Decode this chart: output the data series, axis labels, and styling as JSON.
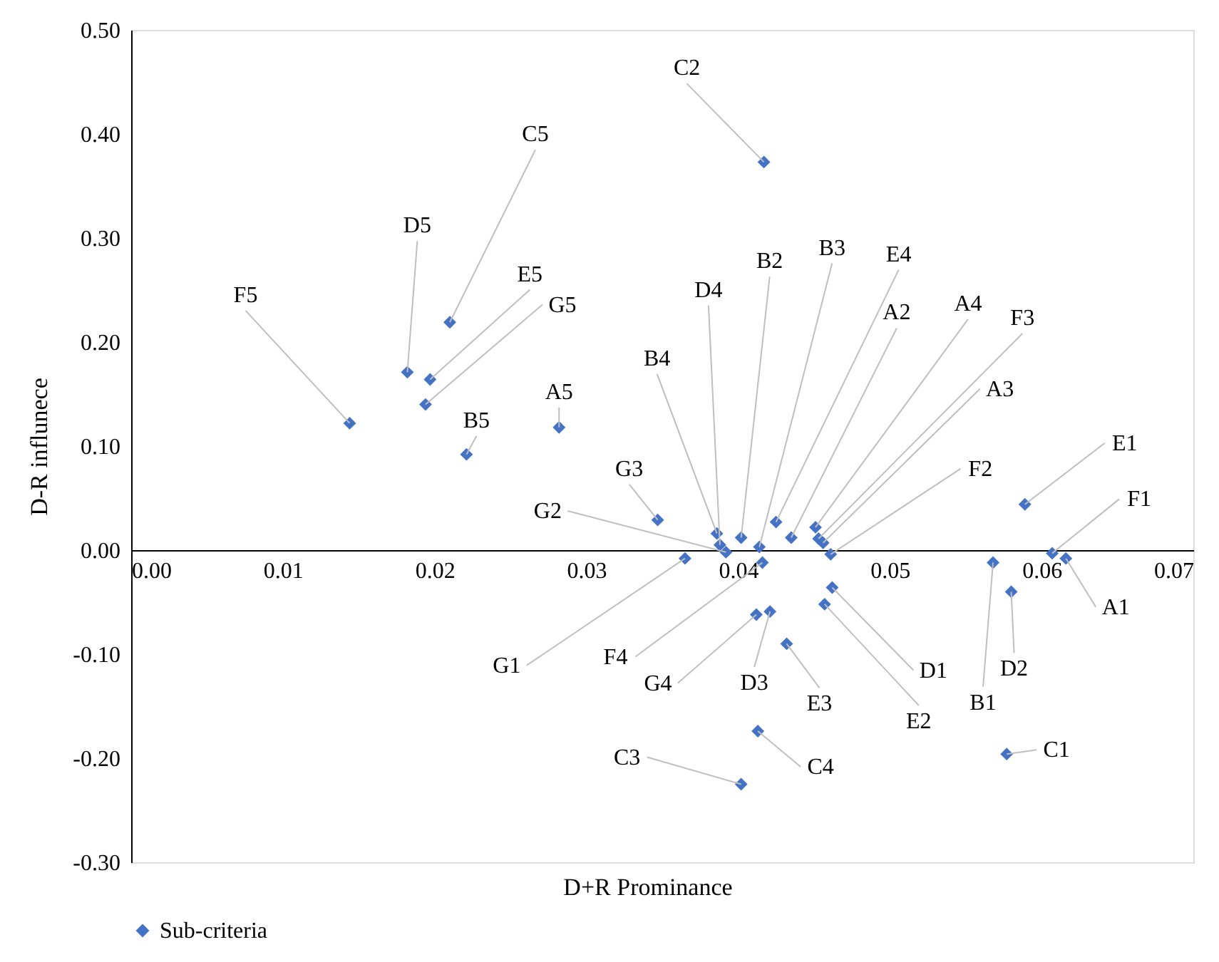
{
  "chart_data": {
    "type": "scatter",
    "xlabel": "D+R Prominance",
    "ylabel": "D-R influnece",
    "x": [
      0.0417,
      0.021,
      0.0182,
      0.0197,
      0.0194,
      0.0144,
      0.0221,
      0.0282,
      0.0347,
      0.0365,
      0.0386,
      0.0388,
      0.0392,
      0.0402,
      0.0414,
      0.0416,
      0.0425,
      0.0435,
      0.0451,
      0.0453,
      0.0456,
      0.0461,
      0.0589,
      0.0607,
      0.0616,
      0.0568,
      0.058,
      0.0577,
      0.0462,
      0.0457,
      0.0432,
      0.0421,
      0.0412,
      0.0413,
      0.0402
    ],
    "series": [
      {
        "name": "Sub-criteria",
        "color": "#4472c4",
        "values": [
          0.373,
          0.219,
          0.171,
          0.164,
          0.14,
          0.122,
          0.092,
          0.118,
          0.029,
          -0.008,
          0.016,
          0.005,
          -0.002,
          0.012,
          0.003,
          -0.012,
          0.027,
          0.012,
          0.022,
          0.011,
          0.007,
          -0.004,
          0.044,
          -0.003,
          -0.008,
          -0.012,
          -0.04,
          -0.196,
          -0.036,
          -0.052,
          -0.09,
          -0.059,
          -0.062,
          -0.174,
          -0.225
        ]
      }
    ],
    "annotations": [
      {
        "text": "C2",
        "x": 0.0417,
        "y": 0.373
      },
      {
        "text": "C5",
        "x": 0.021,
        "y": 0.219
      },
      {
        "text": "D5",
        "x": 0.0182,
        "y": 0.171
      },
      {
        "text": "E5",
        "x": 0.0197,
        "y": 0.164
      },
      {
        "text": "G5",
        "x": 0.0194,
        "y": 0.14
      },
      {
        "text": "F5",
        "x": 0.0144,
        "y": 0.122
      },
      {
        "text": "B5",
        "x": 0.0221,
        "y": 0.092
      },
      {
        "text": "A5",
        "x": 0.0282,
        "y": 0.118
      },
      {
        "text": "G3",
        "x": 0.0347,
        "y": 0.029
      },
      {
        "text": "G1",
        "x": 0.0365,
        "y": -0.008
      },
      {
        "text": "B4",
        "x": 0.0386,
        "y": 0.016
      },
      {
        "text": "D4",
        "x": 0.0388,
        "y": 0.005
      },
      {
        "text": "G2",
        "x": 0.0392,
        "y": -0.002
      },
      {
        "text": "B2",
        "x": 0.0402,
        "y": 0.012
      },
      {
        "text": "B3",
        "x": 0.0414,
        "y": 0.003
      },
      {
        "text": "F4",
        "x": 0.0416,
        "y": -0.012
      },
      {
        "text": "E4",
        "x": 0.0425,
        "y": 0.027
      },
      {
        "text": "A2",
        "x": 0.0435,
        "y": 0.012
      },
      {
        "text": "A4",
        "x": 0.0451,
        "y": 0.022
      },
      {
        "text": "F3",
        "x": 0.0453,
        "y": 0.011
      },
      {
        "text": "A3",
        "x": 0.0456,
        "y": 0.007
      },
      {
        "text": "F2",
        "x": 0.0461,
        "y": -0.004
      },
      {
        "text": "E1",
        "x": 0.0589,
        "y": 0.044
      },
      {
        "text": "F1",
        "x": 0.0607,
        "y": -0.003
      },
      {
        "text": "A1",
        "x": 0.0616,
        "y": -0.008
      },
      {
        "text": "B1",
        "x": 0.0568,
        "y": -0.012
      },
      {
        "text": "D2",
        "x": 0.058,
        "y": -0.04
      },
      {
        "text": "C1",
        "x": 0.0577,
        "y": -0.196
      },
      {
        "text": "D1",
        "x": 0.0462,
        "y": -0.036
      },
      {
        "text": "E2",
        "x": 0.0457,
        "y": -0.052
      },
      {
        "text": "E3",
        "x": 0.0432,
        "y": -0.09
      },
      {
        "text": "D3",
        "x": 0.0421,
        "y": -0.059
      },
      {
        "text": "G4",
        "x": 0.0412,
        "y": -0.062
      },
      {
        "text": "C4",
        "x": 0.0413,
        "y": -0.174
      },
      {
        "text": "C3",
        "x": 0.0402,
        "y": -0.225
      }
    ],
    "xlim": [
      0,
      0.07
    ],
    "ylim": [
      -0.3,
      0.5
    ],
    "xticks": [
      {
        "value": 0,
        "label": "0.00"
      },
      0.01,
      0.02,
      0.03,
      0.04,
      0.05,
      0.06,
      0.07
    ],
    "yticks": [
      {
        "value": -0.3,
        "label": "-0.30"
      },
      {
        "value": -0.2,
        "label": "-0.20"
      },
      {
        "value": -0.1,
        "label": "-0.10"
      },
      {
        "value": 0,
        "label": "0.00"
      },
      {
        "value": 0.1,
        "label": "0.10"
      },
      {
        "value": 0.2,
        "label": "0.20"
      },
      {
        "value": 0.3,
        "label": "0.30"
      },
      {
        "value": 0.4,
        "label": "0.40"
      },
      {
        "value": 0.5,
        "label": "0.50"
      }
    ],
    "grid": false,
    "legend": "bottom",
    "marker": "diamond"
  }
}
